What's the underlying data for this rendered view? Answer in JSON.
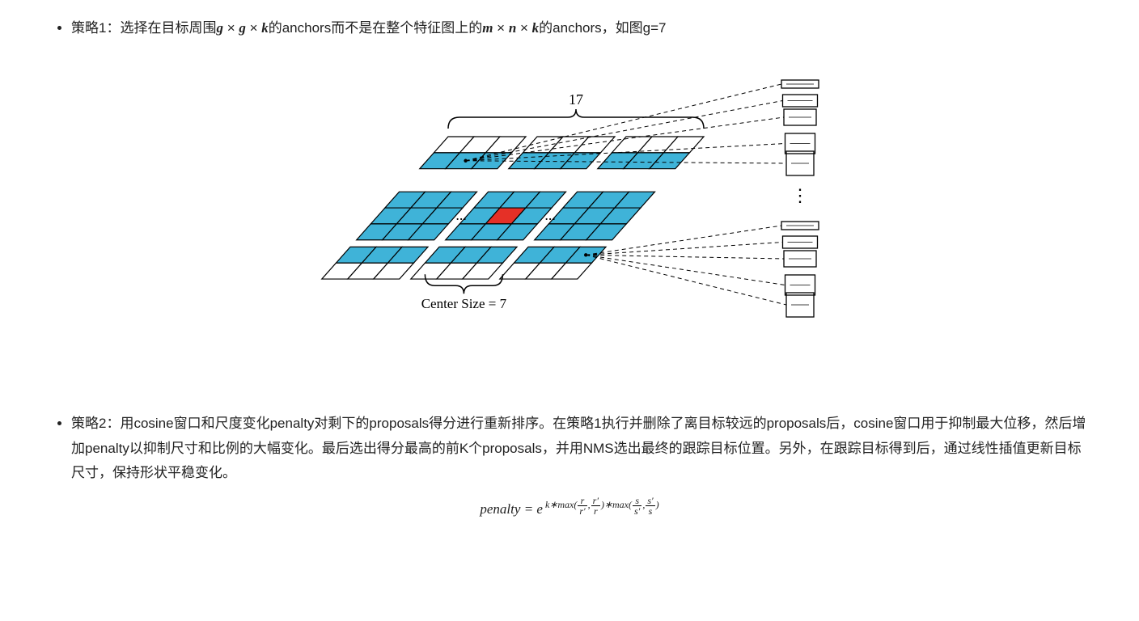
{
  "bullet1": {
    "prefix": "策略1：选择在目标周围",
    "expr1_a": "g",
    "expr1_b": "g",
    "expr1_c": "k",
    "mid1": "的anchors而不是在整个特征图上的",
    "expr2_a": "m",
    "expr2_b": "n",
    "expr2_c": "k",
    "suffix": "的anchors，如图g=7"
  },
  "figure": {
    "top_label": "17",
    "bottom_label": "Center Size = 7",
    "ellipsis": "...",
    "vdots": "⋮",
    "colors": {
      "blue": "#3fb3d8",
      "red": "#e53027",
      "line": "#000000",
      "dash": "#666666",
      "bg": "#ffffff"
    },
    "blocks": {
      "rows": 3,
      "cols": 3,
      "block_cols": 3,
      "block_rows": 3,
      "visible_rows_edge": 2
    },
    "anchors_top_count": 5,
    "anchors_bottom_count": 5
  },
  "bullet2": {
    "text": "策略2：用cosine窗口和尺度变化penalty对剩下的proposals得分进行重新排序。在策略1执行并删除了离目标较远的proposals后，cosine窗口用于抑制最大位移，然后增加penalty以抑制尺寸和比例的大幅变化。最后选出得分最高的前K个proposals，并用NMS选出最终的跟踪目标位置。另外，在跟踪目标得到后，通过线性插值更新目标尺寸，保持形状平稳变化。"
  },
  "formula": {
    "lhs": "penalty",
    "base": "e",
    "k": "k",
    "max": "max",
    "r": "r",
    "rp": "r′",
    "s": "s",
    "sp": "s′"
  }
}
